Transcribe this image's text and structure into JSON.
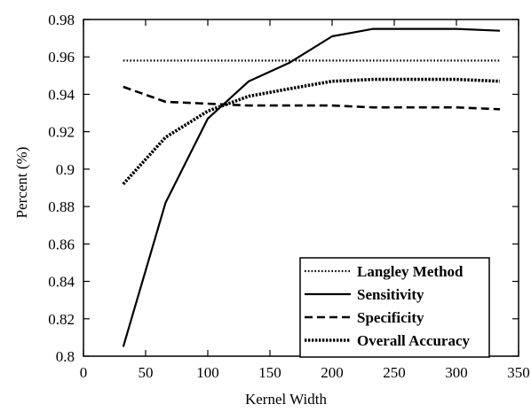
{
  "chart_data": {
    "type": "line",
    "xlabel": "Kernel Width",
    "ylabel": "Percent (%)",
    "xlim": [
      0,
      350
    ],
    "ylim": [
      0.8,
      0.98
    ],
    "xticks": [
      0,
      50,
      100,
      150,
      200,
      250,
      300,
      350
    ],
    "xtick_labels": [
      "0",
      "50",
      "100",
      "150",
      "200",
      "250",
      "300",
      "350"
    ],
    "yticks": [
      0.8,
      0.82,
      0.84,
      0.86,
      0.88,
      0.9,
      0.92,
      0.94,
      0.96,
      0.98
    ],
    "ytick_labels": [
      "0.8",
      "0.82",
      "0.84",
      "0.86",
      "0.88",
      "0.9",
      "0.92",
      "0.94",
      "0.96",
      "0.98"
    ],
    "grid": false,
    "legend_position": "lower-right",
    "series": [
      {
        "name": "Langley Method",
        "style": "fine-dotted",
        "x": [
          32,
          335
        ],
        "y": [
          0.958,
          0.958
        ]
      },
      {
        "name": "Sensitivity",
        "style": "solid",
        "x": [
          32,
          66,
          100,
          133,
          166,
          200,
          233,
          266,
          300,
          335
        ],
        "y": [
          0.805,
          0.882,
          0.927,
          0.947,
          0.957,
          0.971,
          0.975,
          0.975,
          0.975,
          0.974
        ]
      },
      {
        "name": "Specificity",
        "style": "dashed",
        "x": [
          32,
          66,
          100,
          133,
          166,
          200,
          233,
          266,
          300,
          335
        ],
        "y": [
          0.944,
          0.936,
          0.935,
          0.934,
          0.934,
          0.934,
          0.933,
          0.933,
          0.933,
          0.932
        ]
      },
      {
        "name": "Overall Accuracy",
        "style": "heavy-dotted",
        "x": [
          32,
          66,
          100,
          133,
          166,
          200,
          233,
          266,
          300,
          335
        ],
        "y": [
          0.892,
          0.917,
          0.931,
          0.939,
          0.943,
          0.947,
          0.948,
          0.948,
          0.948,
          0.947
        ]
      }
    ]
  }
}
